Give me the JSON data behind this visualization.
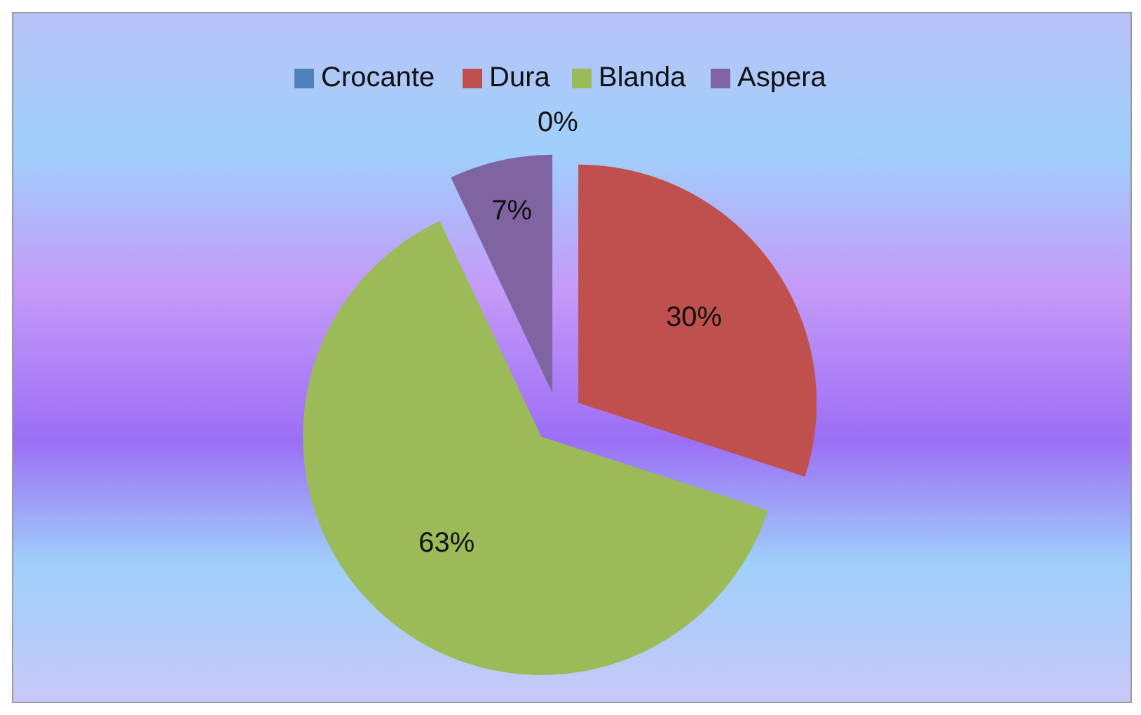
{
  "chart_data": {
    "type": "pie",
    "categories": [
      "Crocante",
      "Dura",
      "Blanda",
      "Aspera"
    ],
    "values": [
      0,
      30,
      63,
      7
    ],
    "colors": [
      "#4f81bd",
      "#c0504d",
      "#9bbb59",
      "#8064a2"
    ],
    "value_labels": [
      "0%",
      "30%",
      "63%",
      "7%"
    ],
    "legend": "top"
  }
}
